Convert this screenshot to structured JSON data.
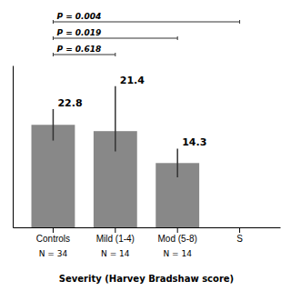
{
  "chart_data": {
    "type": "bar",
    "categories": [
      "Controls",
      "Mild (1-4)",
      "Mod (5-8)",
      "S"
    ],
    "values": [
      22.8,
      21.4,
      14.3,
      null
    ],
    "errors_up": [
      3.5,
      10.0,
      3.2,
      null
    ],
    "errors_down": [
      3.5,
      4.5,
      3.2,
      null
    ],
    "n_labels": [
      "N = 34",
      "N = 14",
      "N = 14",
      null
    ],
    "color": "#888888",
    "xlabel": "Severity (Harvey Bradshaw score)",
    "ylim": [
      0,
      36
    ],
    "tick_labels": "x",
    "data_labels": true,
    "grid": false,
    "significance_lines": [
      {
        "label": "P = 0.004",
        "bar1": "Controls",
        "bar2": "S"
      },
      {
        "label": "P = 0.019",
        "bar1": "Controls",
        "bar2": "Mod (5-8)"
      },
      {
        "label": "P = 0.618",
        "bar1": "Controls",
        "bar2": "Mild (1-4)"
      }
    ]
  }
}
